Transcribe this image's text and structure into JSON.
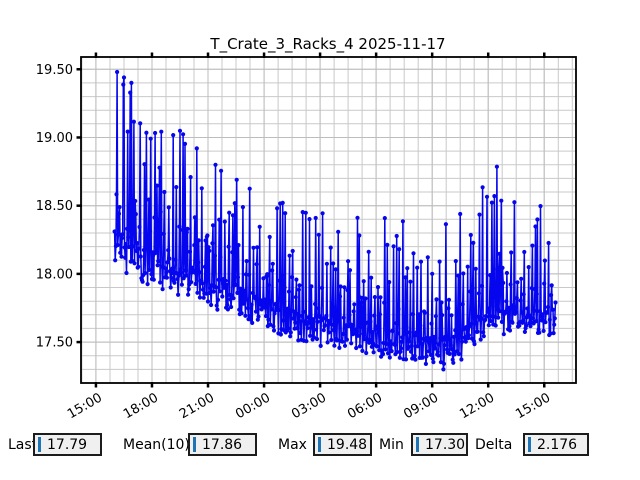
{
  "window": {
    "background": "#ffffff"
  },
  "chart_data": {
    "type": "line",
    "title": "T_Crate_3_Racks_4 2025-11-17",
    "series_name": "T_Crate_3_Racks_4",
    "line_color": "#0505ee",
    "marker": "circle",
    "legend": "none",
    "grid": {
      "on": true,
      "color": "#c9c9c9",
      "major_color": "#bdbdbd"
    },
    "x_axis": {
      "tick_labels": [
        "15:00",
        "18:00",
        "21:00",
        "00:00",
        "03:00",
        "06:00",
        "09:00",
        "12:00",
        "15:00"
      ],
      "tick_hours": [
        0,
        3,
        6,
        9,
        12,
        15,
        18,
        21,
        24
      ],
      "minor_step_h": 0.75,
      "lim_h": [
        -0.8,
        25.7
      ],
      "label_rotation_deg": -30
    },
    "y_axis": {
      "ticks": [
        17.5,
        18.0,
        18.5,
        19.0,
        19.5
      ],
      "tick_labels": [
        "17.50",
        "18.00",
        "18.50",
        "19.00",
        "19.50"
      ],
      "minor_step": 0.1,
      "lim": [
        17.2,
        19.59
      ]
    },
    "data_start_h": 1.0,
    "data_end_h": 24.62,
    "sample_interval_min": 2,
    "value_max": 19.48,
    "value_min": 17.3,
    "last_value": 17.79,
    "envelope": [
      {
        "h": 1.0,
        "high": 19.48,
        "low": 18.05
      },
      {
        "h": 1.8,
        "high": 19.42,
        "low": 17.95
      },
      {
        "h": 3.0,
        "high": 19.25,
        "low": 17.88
      },
      {
        "h": 4.5,
        "high": 19.08,
        "low": 17.8
      },
      {
        "h": 6.0,
        "high": 19.0,
        "low": 17.74
      },
      {
        "h": 7.5,
        "high": 18.85,
        "low": 17.66
      },
      {
        "h": 9.0,
        "high": 18.72,
        "low": 17.58
      },
      {
        "h": 10.5,
        "high": 18.62,
        "low": 17.5
      },
      {
        "h": 12.0,
        "high": 18.55,
        "low": 17.45
      },
      {
        "h": 13.5,
        "high": 18.48,
        "low": 17.42
      },
      {
        "h": 15.0,
        "high": 18.45,
        "low": 17.38
      },
      {
        "h": 16.5,
        "high": 18.42,
        "low": 17.33
      },
      {
        "h": 18.0,
        "high": 18.4,
        "low": 17.3
      },
      {
        "h": 19.2,
        "high": 18.42,
        "low": 17.31
      },
      {
        "h": 20.2,
        "high": 18.6,
        "low": 17.38
      },
      {
        "h": 21.0,
        "high": 18.85,
        "low": 17.48
      },
      {
        "h": 21.8,
        "high": 18.78,
        "low": 17.53
      },
      {
        "h": 22.8,
        "high": 18.62,
        "low": 17.55
      },
      {
        "h": 23.8,
        "high": 18.52,
        "low": 17.5
      },
      {
        "h": 24.62,
        "high": 18.45,
        "low": 17.55
      }
    ],
    "anchors": [
      {
        "h": 1.15,
        "v": 19.48
      },
      {
        "h": 1.5,
        "v": 19.44
      },
      {
        "h": 1.9,
        "v": 19.4
      },
      {
        "h": 18.6,
        "v": 17.3
      },
      {
        "h": 24.62,
        "v": 17.79
      }
    ]
  },
  "stats_bar": {
    "field_background": "#f0f0f0",
    "cursor_color": "#1f74b4",
    "fields": [
      {
        "label": "Last",
        "value": "17.79"
      },
      {
        "label": "Mean(10)",
        "value": "17.86"
      },
      {
        "label": "Max",
        "value": "19.48"
      },
      {
        "label": "Min",
        "value": "17.30"
      },
      {
        "label": "Delta",
        "value": "2.176"
      }
    ]
  }
}
